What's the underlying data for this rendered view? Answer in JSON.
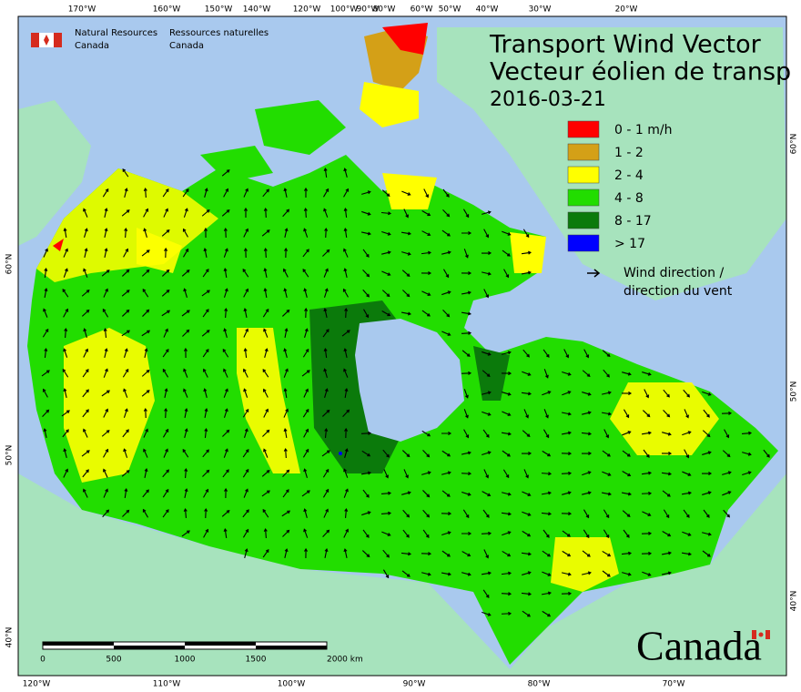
{
  "header": {
    "agency_en": [
      "Natural Resources",
      "Canada"
    ],
    "agency_fr": [
      "Ressources naturelles",
      "Canada"
    ]
  },
  "title": {
    "line1": "Transport Wind Vector",
    "line2": "Vecteur éolien de transp",
    "date": "2016-03-21"
  },
  "legend": {
    "items": [
      {
        "label": "0 - 1 m/h",
        "color": "#ff0000"
      },
      {
        "label": "1 - 2",
        "color": "#d4a017"
      },
      {
        "label": "2 - 4",
        "color": "#ffff00"
      },
      {
        "label": "4 - 8",
        "color": "#22dd00"
      },
      {
        "label": "8 - 17",
        "color": "#0b7a0b"
      },
      {
        "label": "> 17",
        "color": "#0000ff"
      }
    ],
    "arrow_label": [
      "Wind direction /",
      "direction du vent"
    ]
  },
  "graticule": {
    "top": [
      "170°W",
      "160°W",
      "150°W",
      "140°W",
      "120°W",
      "100°W",
      "90°W",
      "80°W",
      "60°W",
      "50°W",
      "40°W",
      "30°W",
      "20°W"
    ],
    "bottom": [
      "120°W",
      "110°W",
      "100°W",
      "90°W",
      "80°W",
      "70°W"
    ],
    "left": [
      "60°N",
      "50°N",
      "40°N"
    ],
    "right": [
      "60°N",
      "50°N",
      "40°N"
    ]
  },
  "scale_bar": [
    "0",
    "500",
    "1000",
    "1500",
    "2000 km"
  ],
  "wordmark": "Canada"
}
